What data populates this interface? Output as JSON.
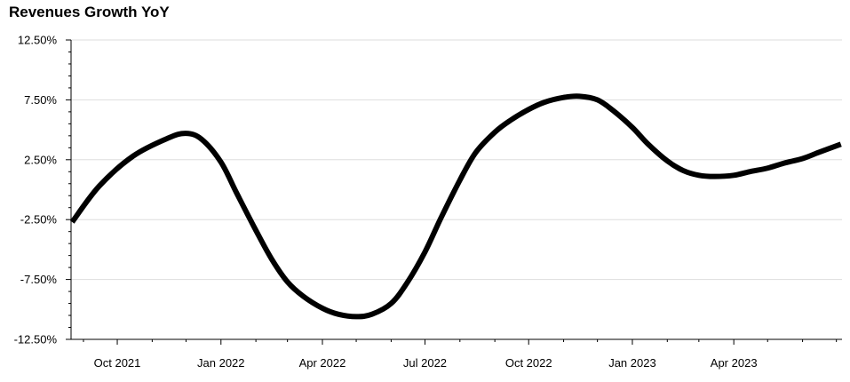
{
  "chart_data": {
    "type": "line",
    "title": "Revenues Growth YoY",
    "xlabel": "",
    "ylabel": "",
    "ylim": [
      -12.5,
      12.5
    ],
    "y_ticks": [
      "12.50%",
      "7.50%",
      "2.50%",
      "-2.50%",
      "-7.50%",
      "-12.50%"
    ],
    "y_tick_values": [
      12.5,
      7.5,
      2.5,
      -2.5,
      -7.5,
      -12.5
    ],
    "xlim": [
      "2021-08-21",
      "2023-07-06"
    ],
    "x_ticks": [
      "Oct 2021",
      "Jan 2022",
      "Apr 2022",
      "Jul 2022",
      "Oct 2022",
      "Jan 2023",
      "Apr 2023"
    ],
    "x_tick_dates": [
      "2021-10-01",
      "2022-01-01",
      "2022-04-01",
      "2022-07-01",
      "2022-10-01",
      "2023-01-01",
      "2023-04-01"
    ],
    "grid": "horizontal",
    "line_color": "#000000",
    "series": [
      {
        "points": [
          {
            "x": "2021-08-22",
            "y": -2.7
          },
          {
            "x": "2021-09-15",
            "y": 0.3
          },
          {
            "x": "2021-10-15",
            "y": 2.8
          },
          {
            "x": "2021-11-15",
            "y": 4.3
          },
          {
            "x": "2021-12-01",
            "y": 4.7
          },
          {
            "x": "2021-12-15",
            "y": 4.2
          },
          {
            "x": "2022-01-01",
            "y": 2.3
          },
          {
            "x": "2022-01-15",
            "y": -0.3
          },
          {
            "x": "2022-02-01",
            "y": -3.4
          },
          {
            "x": "2022-02-15",
            "y": -5.8
          },
          {
            "x": "2022-03-01",
            "y": -7.7
          },
          {
            "x": "2022-03-15",
            "y": -8.9
          },
          {
            "x": "2022-04-01",
            "y": -9.9
          },
          {
            "x": "2022-04-15",
            "y": -10.4
          },
          {
            "x": "2022-05-01",
            "y": -10.6
          },
          {
            "x": "2022-05-15",
            "y": -10.4
          },
          {
            "x": "2022-06-01",
            "y": -9.5
          },
          {
            "x": "2022-06-15",
            "y": -7.8
          },
          {
            "x": "2022-07-01",
            "y": -5.2
          },
          {
            "x": "2022-07-15",
            "y": -2.4
          },
          {
            "x": "2022-08-01",
            "y": 0.8
          },
          {
            "x": "2022-08-15",
            "y": 3.1
          },
          {
            "x": "2022-09-01",
            "y": 4.8
          },
          {
            "x": "2022-09-15",
            "y": 5.8
          },
          {
            "x": "2022-10-01",
            "y": 6.7
          },
          {
            "x": "2022-10-15",
            "y": 7.3
          },
          {
            "x": "2022-11-01",
            "y": 7.7
          },
          {
            "x": "2022-11-15",
            "y": 7.8
          },
          {
            "x": "2022-12-01",
            "y": 7.5
          },
          {
            "x": "2022-12-15",
            "y": 6.6
          },
          {
            "x": "2023-01-01",
            "y": 5.2
          },
          {
            "x": "2023-01-15",
            "y": 3.8
          },
          {
            "x": "2023-02-01",
            "y": 2.4
          },
          {
            "x": "2023-02-15",
            "y": 1.6
          },
          {
            "x": "2023-03-01",
            "y": 1.2
          },
          {
            "x": "2023-03-15",
            "y": 1.1
          },
          {
            "x": "2023-04-01",
            "y": 1.2
          },
          {
            "x": "2023-04-15",
            "y": 1.5
          },
          {
            "x": "2023-05-01",
            "y": 1.8
          },
          {
            "x": "2023-05-15",
            "y": 2.2
          },
          {
            "x": "2023-06-01",
            "y": 2.6
          },
          {
            "x": "2023-06-15",
            "y": 3.1
          },
          {
            "x": "2023-07-05",
            "y": 3.8
          }
        ]
      }
    ]
  }
}
